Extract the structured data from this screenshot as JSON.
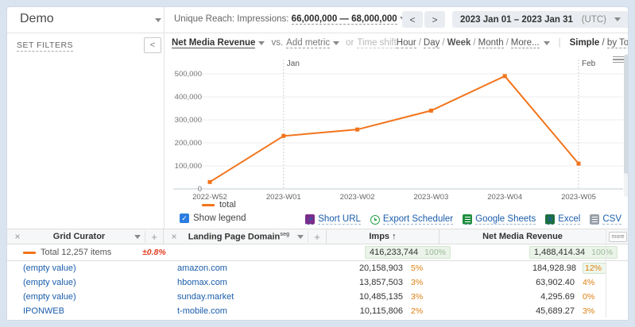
{
  "colors": {
    "accent_orange": "#f2741b",
    "link_blue": "#1a5dab",
    "pct_orange": "#dd7e0f",
    "error_red": "#e23b21",
    "badge_green_bg": "#eaf4e8"
  },
  "glyphs": {
    "close": "×",
    "caret": "▾",
    "add": "+",
    "sort_asc": "↑",
    "check": "✓",
    "collapse": "<",
    "excel_x": "X",
    "shorturl_arrow": "↗"
  },
  "topbar": {
    "report_name": "Demo",
    "unique_reach_label": "Unique Reach: Impressions:",
    "unique_reach_value": "66,000,000 — 68,000,000",
    "prev": "<",
    "next": ">",
    "date_range": "2023 Jan 01 – 2023 Jan 31",
    "timezone": "(UTC)"
  },
  "sidebar": {
    "set_filters_label": "SET FILTERS"
  },
  "toolbar": {
    "metric": "Net Media Revenue",
    "vs_label": "vs.",
    "add_metric": "Add metric",
    "or_label": "or",
    "time_shift": "Time shift",
    "granularity": [
      "Hour",
      "Day",
      "Week",
      "Month",
      "More..."
    ],
    "granularity_active": "Week",
    "mode_simple": "Simple",
    "mode_sep": "/",
    "mode_by_total": "by Total"
  },
  "chart_data": {
    "type": "line",
    "title": "",
    "xlabel": "",
    "ylabel": "",
    "x": [
      "2022-W52",
      "2023-W01",
      "2023-W02",
      "2023-W03",
      "2023-W04",
      "2023-W05"
    ],
    "series": [
      {
        "name": "total",
        "color": "#f2741b",
        "values": [
          30000,
          230000,
          258000,
          340000,
          490000,
          110000
        ]
      }
    ],
    "ylim": [
      0,
      560000
    ],
    "yticks": [
      0,
      100000,
      200000,
      300000,
      400000,
      500000
    ],
    "ytick_labels": [
      "0",
      "100,000",
      "200,000",
      "300,000",
      "400,000",
      "500,000"
    ],
    "month_markers": [
      {
        "label": "Jan",
        "x_index": 1
      },
      {
        "label": "Feb",
        "x_index": 5
      }
    ],
    "legend_position": "bottom-left",
    "grid": true
  },
  "legend": {
    "total_label": "total",
    "show_legend_label": "Show legend",
    "checked": true
  },
  "export": {
    "short_url": "Short URL",
    "export_scheduler": "Export Scheduler",
    "google_sheets": "Google Sheets",
    "excel": "Excel",
    "csv": "CSV"
  },
  "table": {
    "columns": [
      {
        "title": "Grid Curator",
        "sup": ""
      },
      {
        "title": "Landing Page Domain",
        "sup": "seg"
      },
      {
        "title": "Imps",
        "sort": "↑"
      },
      {
        "title": "Net Media Revenue",
        "sort": ""
      }
    ],
    "more_label": "more",
    "total_row": {
      "label": "Total 12,257 items",
      "error": "±0.8%",
      "imps": "416,233,744",
      "imps_pct": "100%",
      "revenue": "1,488,414.34",
      "revenue_pct": "100%"
    },
    "rows": [
      {
        "curator": "(empty value)",
        "domain": "amazon.com",
        "imps": "20,158,903",
        "imps_pct": "5%",
        "revenue": "184,928.98",
        "revenue_pct": "12%",
        "revenue_pct_badge": true
      },
      {
        "curator": "(empty value)",
        "domain": "hbomax.com",
        "imps": "13,857,503",
        "imps_pct": "3%",
        "revenue": "63,902.40",
        "revenue_pct": "4%",
        "revenue_pct_badge": false
      },
      {
        "curator": "(empty value)",
        "domain": "sunday.market",
        "imps": "10,485,135",
        "imps_pct": "3%",
        "revenue": "4,295.69",
        "revenue_pct": "0%",
        "revenue_pct_badge": false
      },
      {
        "curator": "IPONWEB",
        "domain": "t-mobile.com",
        "imps": "10,115,806",
        "imps_pct": "2%",
        "revenue": "45,689.27",
        "revenue_pct": "3%",
        "revenue_pct_badge": false
      }
    ]
  }
}
